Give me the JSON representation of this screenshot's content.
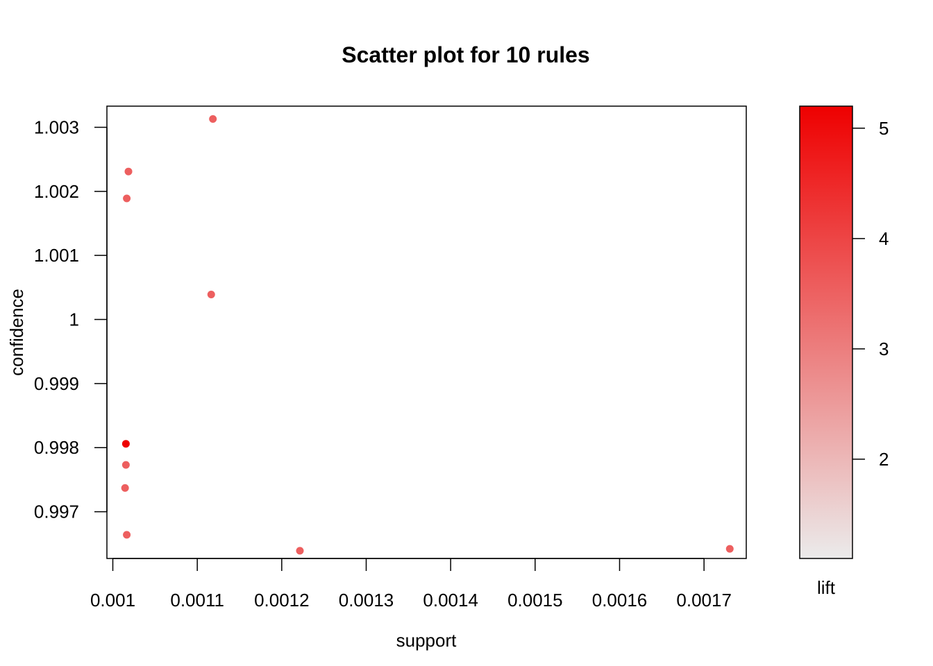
{
  "chart_data": {
    "type": "scatter",
    "title": "Scatter plot for 10 rules",
    "xlabel": "support",
    "ylabel": "confidence",
    "xlim": [
      0.000993,
      0.00175
    ],
    "ylim": [
      0.99627,
      1.00333
    ],
    "x_ticks": [
      0.001,
      0.0011,
      0.0012,
      0.0013,
      0.0014,
      0.0015,
      0.0016,
      0.0017
    ],
    "x_tick_labels": [
      "0.001",
      "0.0011",
      "0.0012",
      "0.0013",
      "0.0014",
      "0.0015",
      "0.0016",
      "0.0017"
    ],
    "y_ticks": [
      0.997,
      0.998,
      0.999,
      1.0,
      1.001,
      1.002,
      1.003
    ],
    "y_tick_labels": [
      "0.997",
      "0.998",
      "0.999",
      "1",
      "1.001",
      "1.002",
      "1.003"
    ],
    "grid": false,
    "points": [
      {
        "x": 0.0011185,
        "y": 1.00313,
        "lift": 3.55
      },
      {
        "x": 0.0010185,
        "y": 1.00231,
        "lift": 3.55
      },
      {
        "x": 0.0010165,
        "y": 1.00189,
        "lift": 3.55
      },
      {
        "x": 0.0011165,
        "y": 1.00039,
        "lift": 3.55
      },
      {
        "x": 0.0010155,
        "y": 0.99806,
        "lift": 5.2
      },
      {
        "x": 0.0010155,
        "y": 0.99773,
        "lift": 3.55
      },
      {
        "x": 0.0010145,
        "y": 0.99737,
        "lift": 3.55
      },
      {
        "x": 0.0010165,
        "y": 0.99664,
        "lift": 3.55
      },
      {
        "x": 0.0012215,
        "y": 0.99639,
        "lift": 3.55
      },
      {
        "x": 0.0017305,
        "y": 0.99642,
        "lift": 3.55
      }
    ],
    "colorbar": {
      "label": "lift",
      "range": [
        1.1,
        5.2
      ],
      "ticks": [
        2,
        3,
        4,
        5
      ],
      "tick_labels": [
        "2",
        "3",
        "4",
        "5"
      ],
      "color_low": "#EBEBEB",
      "color_high": "#EE0000"
    }
  }
}
